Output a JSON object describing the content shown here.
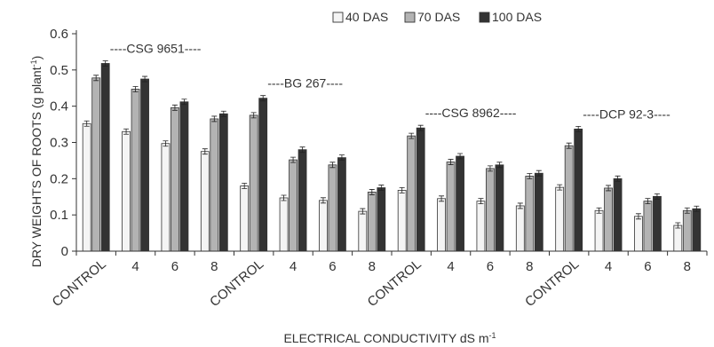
{
  "chart_data": {
    "type": "bar",
    "xlabel": "ELECTRICAL CONDUCTIVITY dS m",
    "xlabel_sup": "-1",
    "ylabel": "DRY WEIGHTS OF ROOTS (g plant",
    "ylabel_sup": "-1",
    "ylabel_tail": ")",
    "ylim": [
      0,
      0.6
    ],
    "yticks": [
      "0",
      "0.1",
      "0.2",
      "0.3",
      "0.4",
      "0.5",
      "0.6"
    ],
    "categories": [
      "CONTROL",
      "4",
      "6",
      "8",
      "CONTROL",
      "4",
      "6",
      "8",
      "CONTROL",
      "4",
      "6",
      "8",
      "CONTROL",
      "4",
      "6",
      "8"
    ],
    "group_labels": [
      "----CSG 9651----",
      "----BG 267----",
      "----CSG 8962----",
      "----DCP 92-3----"
    ],
    "series": [
      {
        "name": "40 DAS",
        "color": "#f4f4f4",
        "values": [
          0.352,
          0.33,
          0.297,
          0.275,
          0.18,
          0.147,
          0.14,
          0.11,
          0.168,
          0.145,
          0.138,
          0.125,
          0.176,
          0.112,
          0.096,
          0.071
        ]
      },
      {
        "name": "70 DAS",
        "color": "#b3b3b3",
        "values": [
          0.478,
          0.447,
          0.396,
          0.365,
          0.375,
          0.252,
          0.238,
          0.163,
          0.318,
          0.246,
          0.228,
          0.207,
          0.291,
          0.174,
          0.138,
          0.112
        ]
      },
      {
        "name": "100 DAS",
        "color": "#333333",
        "values": [
          0.518,
          0.475,
          0.412,
          0.379,
          0.422,
          0.28,
          0.258,
          0.175,
          0.34,
          0.262,
          0.238,
          0.215,
          0.337,
          0.2,
          0.151,
          0.117
        ]
      }
    ],
    "legend_position": "top-right",
    "grid": false
  }
}
